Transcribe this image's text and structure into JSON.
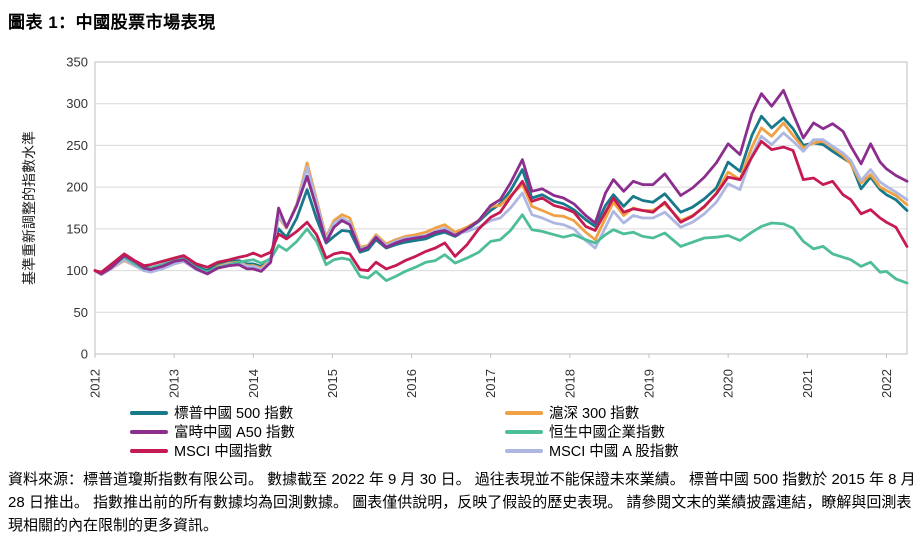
{
  "title": "圖表 1：中國股票市場表現",
  "footer": {
    "text": "資料來源：標普道瓊斯指數有限公司。 數據截至 2022 年 9 月 30 日。 過往表現並不能保證未來業績。 標普中國 500 指數於 2015 年 8 月 28 日推出。 指數推出前的所有數據均為回測數據。 圖表僅供說明，反映了假設的歷史表現。 請參閱文末的業績披露連結，瞭解與回測表現相關的內在限制的更多資訊。"
  },
  "colors": {
    "grid": "#d9d9d9",
    "plot_border": "#bfbfbf",
    "tick": "#bfbfbf",
    "axis_text": "#333333"
  },
  "chart_data": {
    "type": "line",
    "title": "圖表 1：中國股票市場表現",
    "ylabel": "基準重新調整的指數水準",
    "xlabel": "",
    "ylim": [
      0,
      350
    ],
    "ytick_step": 50,
    "grid": "horizontal",
    "legend_position": "bottom-two-columns",
    "xticks": [
      2012,
      2013,
      2014,
      2015,
      2016,
      2017,
      2018,
      2019,
      2020,
      2021,
      2022
    ],
    "x_is_year_fraction": true,
    "x": [
      2012.0,
      2012.08,
      2012.2,
      2012.37,
      2012.5,
      2012.62,
      2012.7,
      2012.85,
      2013.0,
      2013.12,
      2013.28,
      2013.42,
      2013.55,
      2013.7,
      2013.82,
      2013.92,
      2014.0,
      2014.1,
      2014.22,
      2014.32,
      2014.42,
      2014.55,
      2014.68,
      2014.8,
      2014.92,
      2015.02,
      2015.12,
      2015.22,
      2015.35,
      2015.45,
      2015.55,
      2015.68,
      2015.8,
      2015.92,
      2016.05,
      2016.18,
      2016.3,
      2016.42,
      2016.55,
      2016.7,
      2016.85,
      2017.0,
      2017.12,
      2017.25,
      2017.4,
      2017.52,
      2017.65,
      2017.8,
      2017.92,
      2018.05,
      2018.2,
      2018.32,
      2018.45,
      2018.55,
      2018.68,
      2018.8,
      2018.92,
      2019.05,
      2019.2,
      2019.4,
      2019.55,
      2019.7,
      2019.85,
      2020.0,
      2020.15,
      2020.3,
      2020.42,
      2020.55,
      2020.7,
      2020.82,
      2020.95,
      2021.08,
      2021.2,
      2021.32,
      2021.45,
      2021.55,
      2021.68,
      2021.8,
      2021.92,
      2022.0,
      2022.12,
      2022.26
    ],
    "series": [
      {
        "name": "標普中國 500 指數",
        "color": "#17798a",
        "values": [
          100,
          97,
          105,
          116,
          110,
          104,
          103,
          107,
          112,
          115,
          105,
          100,
          108,
          111,
          112,
          108,
          108,
          105,
          115,
          150,
          140,
          163,
          197,
          162,
          133,
          141,
          148,
          147,
          122,
          125,
          137,
          127,
          131,
          134,
          136,
          138,
          143,
          146,
          141,
          149,
          159,
          172,
          180,
          196,
          221,
          187,
          191,
          183,
          180,
          173,
          161,
          153,
          178,
          191,
          177,
          189,
          184,
          182,
          192,
          170,
          176,
          186,
          199,
          230,
          219,
          262,
          285,
          271,
          283,
          270,
          250,
          253,
          251,
          243,
          235,
          229,
          198,
          212,
          197,
          191,
          185,
          172
        ]
      },
      {
        "name": "滬深 300 指數",
        "color": "#f0a143",
        "values": [
          100,
          95,
          102,
          112,
          106,
          100,
          99,
          103,
          108,
          111,
          102,
          97,
          105,
          109,
          110,
          106,
          106,
          103,
          113,
          164,
          151,
          180,
          229,
          185,
          140,
          160,
          167,
          163,
          128,
          130,
          143,
          132,
          137,
          141,
          143,
          146,
          151,
          155,
          146,
          152,
          160,
          177,
          178,
          190,
          203,
          177,
          172,
          166,
          165,
          160,
          146,
          137,
          163,
          182,
          166,
          175,
          172,
          172,
          180,
          160,
          166,
          176,
          193,
          218,
          209,
          248,
          271,
          261,
          277,
          262,
          247,
          253,
          255,
          247,
          238,
          228,
          205,
          215,
          200,
          196,
          190,
          179
        ]
      },
      {
        "name": "MSCI 中國 A 股指數",
        "color": "#aeb7e2",
        "values": [
          100,
          95,
          102,
          113,
          106,
          100,
          98,
          102,
          108,
          111,
          101,
          96,
          104,
          108,
          109,
          105,
          105,
          101,
          112,
          166,
          152,
          179,
          224,
          182,
          138,
          157,
          163,
          158,
          126,
          129,
          141,
          130,
          135,
          139,
          140,
          142,
          147,
          151,
          143,
          147,
          152,
          160,
          163,
          175,
          193,
          167,
          163,
          157,
          155,
          150,
          136,
          127,
          152,
          171,
          157,
          166,
          163,
          163,
          170,
          152,
          158,
          168,
          182,
          204,
          197,
          238,
          261,
          251,
          265,
          255,
          243,
          257,
          257,
          249,
          241,
          232,
          208,
          221,
          206,
          201,
          194,
          185
        ]
      },
      {
        "name": "恒生中國企業指數",
        "color": "#4ebd9a",
        "values": [
          100,
          97,
          105,
          116,
          108,
          102,
          103,
          107,
          112,
          114,
          103,
          98,
          104,
          107,
          110,
          112,
          113,
          109,
          114,
          130,
          124,
          135,
          150,
          135,
          107,
          113,
          115,
          113,
          93,
          91,
          99,
          88,
          93,
          99,
          104,
          110,
          112,
          119,
          109,
          115,
          122,
          135,
          137,
          148,
          167,
          149,
          147,
          143,
          140,
          143,
          137,
          133,
          143,
          149,
          144,
          146,
          141,
          139,
          145,
          129,
          134,
          139,
          140,
          142,
          136,
          146,
          153,
          157,
          156,
          151,
          135,
          126,
          129,
          120,
          116,
          113,
          105,
          110,
          98,
          99,
          90,
          85
        ]
      },
      {
        "name": "富時中國 A50 指數",
        "color": "#8b2e8e",
        "values": [
          100,
          96,
          103,
          118,
          111,
          103,
          101,
          105,
          111,
          113,
          102,
          96,
          103,
          106,
          107,
          102,
          102,
          99,
          110,
          175,
          152,
          178,
          213,
          175,
          134,
          152,
          160,
          155,
          124,
          128,
          140,
          128,
          133,
          137,
          139,
          141,
          146,
          148,
          142,
          150,
          160,
          178,
          185,
          205,
          233,
          195,
          198,
          190,
          187,
          180,
          166,
          157,
          193,
          209,
          195,
          207,
          203,
          203,
          216,
          190,
          199,
          212,
          229,
          252,
          239,
          288,
          312,
          297,
          316,
          288,
          259,
          277,
          270,
          276,
          267,
          249,
          228,
          252,
          230,
          222,
          214,
          207
        ]
      },
      {
        "name": "MSCI 中國指數",
        "color": "#c51a52",
        "values": [
          100,
          98,
          107,
          120,
          112,
          106,
          107,
          111,
          115,
          118,
          108,
          104,
          110,
          113,
          116,
          118,
          121,
          117,
          122,
          144,
          138,
          147,
          158,
          143,
          115,
          120,
          122,
          120,
          101,
          100,
          110,
          102,
          106,
          112,
          117,
          123,
          127,
          133,
          117,
          131,
          150,
          164,
          170,
          188,
          207,
          183,
          187,
          178,
          175,
          170,
          153,
          148,
          170,
          187,
          170,
          174,
          172,
          170,
          182,
          158,
          165,
          177,
          192,
          212,
          209,
          236,
          255,
          245,
          248,
          244,
          209,
          211,
          203,
          207,
          191,
          185,
          168,
          173,
          163,
          158,
          152,
          129
        ]
      }
    ],
    "legend_columns": [
      [
        "標普中國 500 指數",
        "富時中國 A50 指數",
        "MSCI 中國指數"
      ],
      [
        "滬深 300 指數",
        "恒生中國企業指數",
        "MSCI 中國 A 股指數"
      ]
    ]
  }
}
